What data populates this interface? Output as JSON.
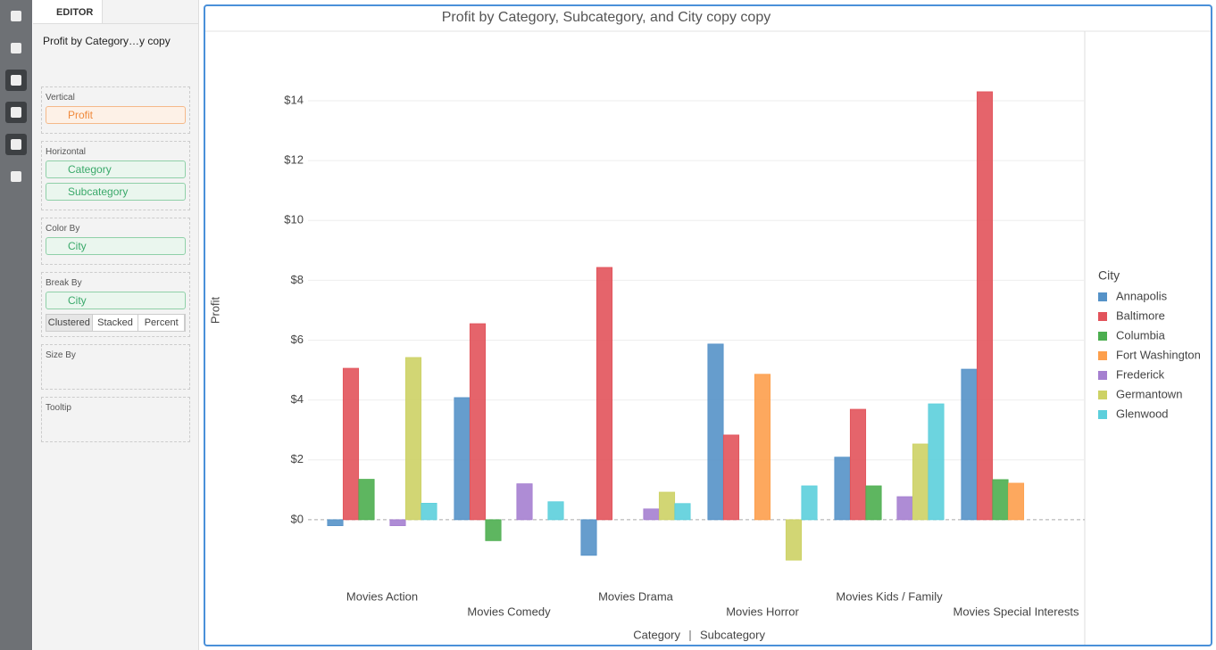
{
  "editor": {
    "tab": "EDITOR",
    "name": "Profit by Category…y copy",
    "sections": [
      {
        "label": "Vertical",
        "fields": [
          "Profit"
        ]
      },
      {
        "label": "Horizontal",
        "fields": [
          "Category",
          "Subcategory"
        ]
      },
      {
        "label": "Color By",
        "fields": [
          "City"
        ]
      },
      {
        "label": "Break By",
        "fields": [
          "City"
        ]
      },
      {
        "label": "Size By",
        "fields": []
      },
      {
        "label": "Tooltip",
        "fields": []
      }
    ],
    "break_modes": [
      "Clustered",
      "Stacked",
      "Percent"
    ]
  },
  "chart_data": {
    "type": "bar",
    "title": "Profit by Category, Subcategory, and City copy copy",
    "y_label": "Profit",
    "x_label": [
      "Category",
      "Subcategory"
    ],
    "legend_title": "City",
    "legend_position": "right",
    "grid": true,
    "categories": [
      "Movies Action",
      "Movies Comedy",
      "Movies Drama",
      "Movies Horror",
      "Movies Kids / Family",
      "Movies Special Interests"
    ],
    "series": [
      {
        "name": "Annapolis",
        "color": "#5592c8",
        "values": [
          -0.2,
          4.08,
          -1.19,
          5.87,
          2.09,
          5.03
        ]
      },
      {
        "name": "Baltimore",
        "color": "#e2535b",
        "values": [
          5.06,
          6.55,
          8.43,
          2.83,
          3.69,
          14.3
        ]
      },
      {
        "name": "Columbia",
        "color": "#4cae4f",
        "values": [
          1.35,
          -0.7,
          null,
          null,
          1.13,
          1.34
        ]
      },
      {
        "name": "Fort Washington",
        "color": "#fd9f4c",
        "values": [
          null,
          null,
          null,
          4.86,
          null,
          1.22
        ]
      },
      {
        "name": "Frederick",
        "color": "#a57fd0",
        "values": [
          -0.2,
          1.2,
          0.36,
          null,
          0.77,
          null
        ]
      },
      {
        "name": "Germantown",
        "color": "#cdd265",
        "values": [
          5.42,
          null,
          0.92,
          -1.35,
          2.53,
          null
        ]
      },
      {
        "name": "Glenwood",
        "color": "#5ccfdc",
        "values": [
          0.55,
          0.6,
          0.54,
          1.13,
          3.87,
          null
        ]
      }
    ],
    "ylim": [
      -2,
      16.3
    ],
    "yticks": [
      {
        "value": 0,
        "label": "$0"
      },
      {
        "value": 2,
        "label": "$2"
      },
      {
        "value": 4,
        "label": "$4"
      },
      {
        "value": 6,
        "label": "$6"
      },
      {
        "value": 8,
        "label": "$8"
      },
      {
        "value": 10,
        "label": "$10"
      },
      {
        "value": 12,
        "label": "$12"
      },
      {
        "value": 14,
        "label": "$14"
      }
    ]
  }
}
